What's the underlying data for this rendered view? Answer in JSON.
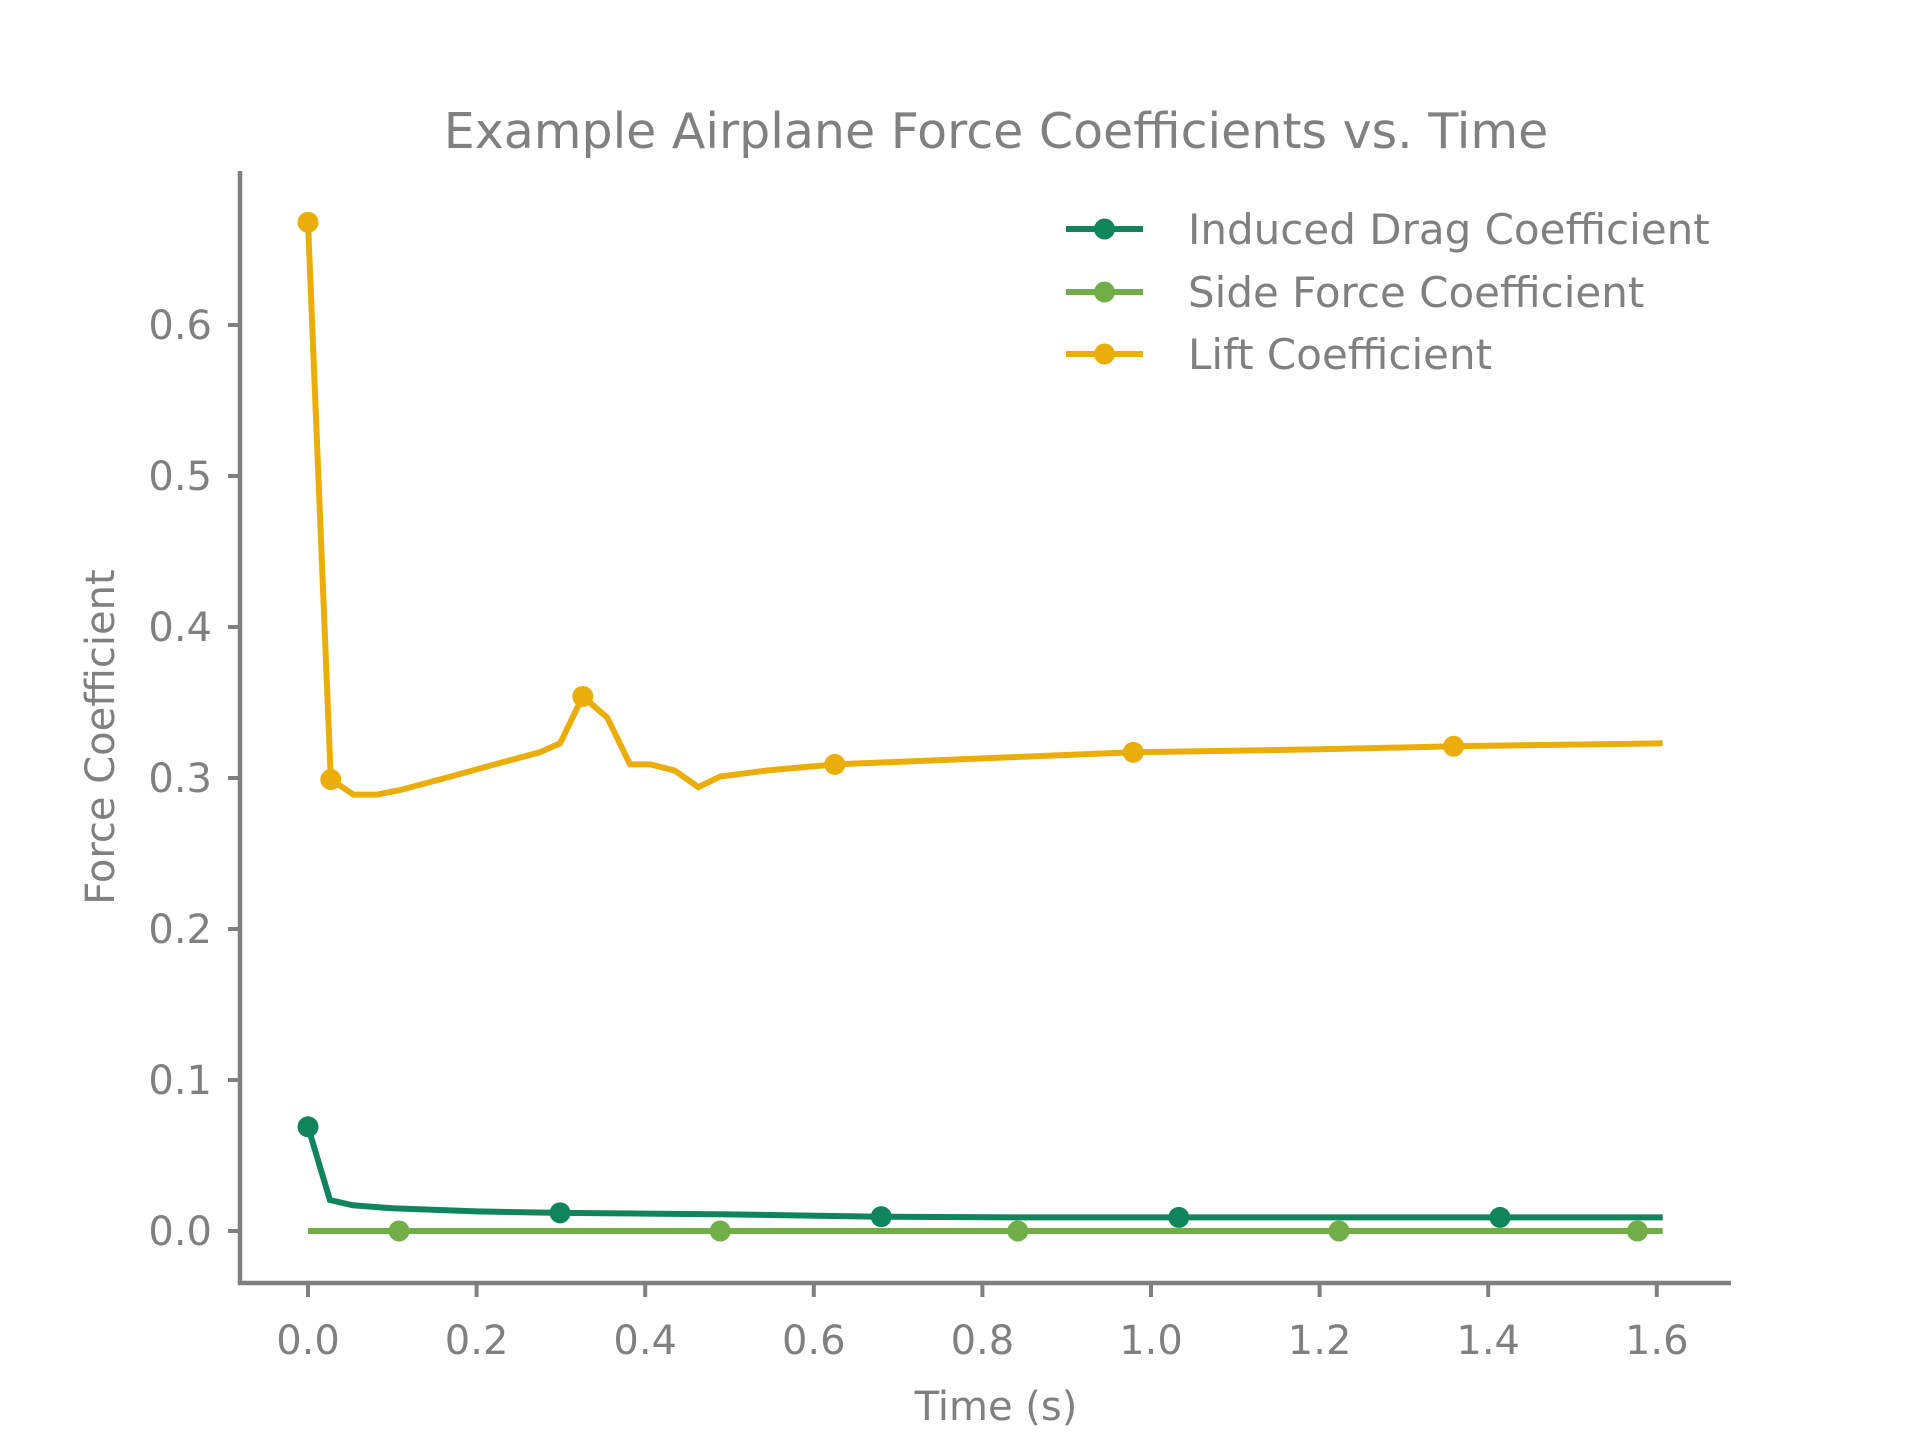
{
  "chart_data": {
    "type": "line",
    "title": "Example Airplane Force Coefficients vs. Time",
    "xlabel": "Time (s)",
    "ylabel": "Force Coefficient",
    "xlim": [
      -0.08,
      1.68
    ],
    "ylim": [
      -0.034,
      0.7
    ],
    "xticks": [
      0.0,
      0.2,
      0.4,
      0.6,
      0.8,
      1.0,
      1.2,
      1.4,
      1.6
    ],
    "xtick_labels": [
      "0.0",
      "0.2",
      "0.4",
      "0.6",
      "0.8",
      "1.0",
      "1.2",
      "1.4",
      "1.6"
    ],
    "yticks": [
      0.0,
      0.1,
      0.2,
      0.3,
      0.4,
      0.5,
      0.6
    ],
    "ytick_labels": [
      "0.0",
      "0.1",
      "0.2",
      "0.3",
      "0.4",
      "0.5",
      "0.6"
    ],
    "grid": false,
    "legend_position": "upper right",
    "series": [
      {
        "name": "Induced Drag Coefficient",
        "color": "#10845a",
        "x": [
          0.0,
          0.026,
          0.053,
          0.1,
          0.2,
          0.299,
          0.4,
          0.5,
          0.68,
          0.85,
          1.033,
          1.2,
          1.414,
          1.607
        ],
        "values": [
          0.069,
          0.0205,
          0.017,
          0.015,
          0.013,
          0.012,
          0.0115,
          0.011,
          0.0095,
          0.009,
          0.009,
          0.009,
          0.009,
          0.009
        ],
        "marker_x": [
          0.0,
          0.299,
          0.68,
          1.033,
          1.414
        ],
        "marker_values": [
          0.069,
          0.012,
          0.0095,
          0.009,
          0.009
        ]
      },
      {
        "name": "Side Force Coefficient",
        "color": "#72ae47",
        "x": [
          0.0,
          0.108,
          0.489,
          0.842,
          1.223,
          1.577,
          1.607
        ],
        "values": [
          0.0,
          0.0,
          0.0,
          0.0,
          0.0,
          0.0,
          0.0
        ],
        "marker_x": [
          0.108,
          0.489,
          0.842,
          1.223,
          1.577
        ],
        "marker_values": [
          0.0,
          0.0,
          0.0,
          0.0,
          0.0
        ]
      },
      {
        "name": "Lift Coefficient",
        "color": "#ebad0a",
        "x": [
          0.0,
          0.027,
          0.054,
          0.082,
          0.109,
          0.163,
          0.228,
          0.275,
          0.299,
          0.326,
          0.355,
          0.382,
          0.406,
          0.435,
          0.463,
          0.489,
          0.544,
          0.625,
          0.8,
          0.979,
          1.2,
          1.359,
          1.607
        ],
        "values": [
          0.668,
          0.299,
          0.289,
          0.289,
          0.292,
          0.3,
          0.31,
          0.317,
          0.323,
          0.354,
          0.34,
          0.309,
          0.309,
          0.305,
          0.294,
          0.301,
          0.305,
          0.309,
          0.313,
          0.317,
          0.319,
          0.321,
          0.323
        ],
        "marker_x": [
          0.0,
          0.027,
          0.326,
          0.625,
          0.979,
          1.359
        ],
        "marker_values": [
          0.668,
          0.299,
          0.354,
          0.309,
          0.317,
          0.321
        ]
      }
    ]
  },
  "colors": {
    "text": "#808080",
    "axis": "#808080",
    "background": "#ffffff"
  }
}
